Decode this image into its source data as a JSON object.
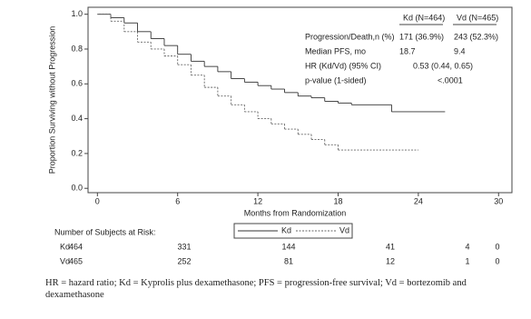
{
  "chart_data": {
    "type": "line",
    "step": true,
    "ylabel": "Proportion Surviving without Progression",
    "xlabel": "Months from Randomization",
    "xlim": [
      -0.7,
      31
    ],
    "ylim": [
      -0.025,
      1.04
    ],
    "xticks": [
      0,
      6,
      12,
      18,
      24,
      30
    ],
    "yticks": [
      {
        "value": 0,
        "label": "0.0"
      },
      {
        "value": 0.2,
        "label": "0.2"
      },
      {
        "value": 0.4,
        "label": "0.4"
      },
      {
        "value": 0.6,
        "label": "0.6"
      },
      {
        "value": 0.8,
        "label": "0.8"
      },
      {
        "value": 1.0,
        "label": "1.0"
      }
    ],
    "series": [
      {
        "name": "Kd",
        "color": "#333333",
        "dash": false,
        "x": [
          0,
          1,
          2,
          3,
          4,
          5,
          6,
          7,
          8,
          9,
          10,
          11,
          12,
          13,
          14,
          15,
          16,
          17,
          18,
          19,
          22,
          26
        ],
        "y": [
          1.0,
          0.98,
          0.95,
          0.9,
          0.86,
          0.82,
          0.77,
          0.73,
          0.7,
          0.67,
          0.63,
          0.61,
          0.59,
          0.57,
          0.55,
          0.53,
          0.52,
          0.5,
          0.49,
          0.48,
          0.44,
          0.44
        ]
      },
      {
        "name": "Vd",
        "color": "#666666",
        "dash": true,
        "x": [
          0,
          1,
          2,
          3,
          4,
          5,
          6,
          7,
          8,
          9,
          10,
          11,
          12,
          13,
          14,
          15,
          16,
          17,
          18,
          24
        ],
        "y": [
          1.0,
          0.96,
          0.9,
          0.84,
          0.8,
          0.76,
          0.71,
          0.65,
          0.58,
          0.53,
          0.48,
          0.44,
          0.4,
          0.37,
          0.34,
          0.31,
          0.28,
          0.25,
          0.22,
          0.22
        ]
      }
    ],
    "stats_table": {
      "headers": [
        "Kd (N=464)",
        "Vd (N=465)"
      ],
      "rows": [
        [
          "Progression/Death,n (%)",
          "171  (36.9%)",
          "243  (52.3%)"
        ],
        [
          "Median PFS, mo",
          "18.7",
          "9.4"
        ],
        [
          "HR (Kd/Vd) (95% CI)",
          "0.53  (0.44,  0.65)"
        ],
        [
          "p-value  (1-sided)",
          "<.0001"
        ]
      ]
    },
    "risk_table": {
      "title": "Number of Subjects at Risk:",
      "rows": [
        {
          "label": "Kd",
          "counts": [
            "464",
            "331",
            "144",
            "41",
            "4",
            "0"
          ]
        },
        {
          "label": "Vd",
          "counts": [
            "465",
            "252",
            "81",
            "12",
            "1",
            "0"
          ]
        }
      ]
    }
  },
  "footnote": "HR = hazard ratio; Kd = Kyprolis plus dexamethasone; PFS = progression-free survival; Vd = bortezomib and dexamethasone"
}
